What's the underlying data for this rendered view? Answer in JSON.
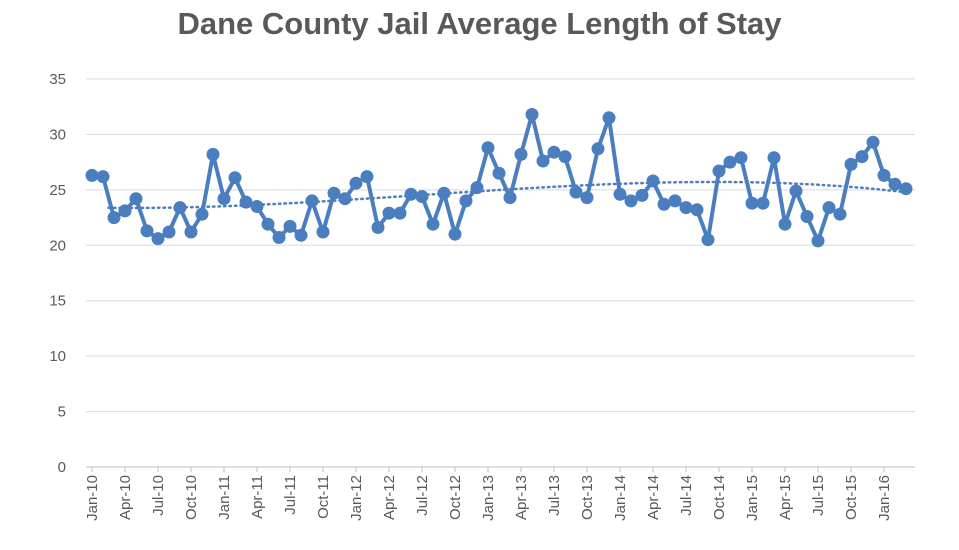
{
  "colors": {
    "series": "#4a7ebf",
    "grid": "#d9d9d9",
    "text": "#595959",
    "axis": "#bfbfbf"
  },
  "chart_data": {
    "type": "line",
    "title": "Dane County Jail Average Length of Stay",
    "xlabel": "",
    "ylabel": "",
    "ylim": [
      0,
      35
    ],
    "yticks": [
      0,
      5,
      10,
      15,
      20,
      25,
      30,
      35
    ],
    "grid": true,
    "legend": "none",
    "trendline": "polynomial (dotted)",
    "x_tick_labels": [
      "Jan-10",
      "Apr-10",
      "Jul-10",
      "Oct-10",
      "Jan-11",
      "Apr-11",
      "Jul-11",
      "Oct-11",
      "Jan-12",
      "Apr-12",
      "Jul-12",
      "Oct-12",
      "Jan-13",
      "Apr-13",
      "Jul-13",
      "Oct-13",
      "Jan-14",
      "Apr-14",
      "Jul-14",
      "Oct-14",
      "Jan-15",
      "Apr-15",
      "Jul-15",
      "Oct-15",
      "Jan-16"
    ],
    "x": [
      "Jan-10",
      "Feb-10",
      "Mar-10",
      "Apr-10",
      "May-10",
      "Jun-10",
      "Jul-10",
      "Aug-10",
      "Sep-10",
      "Oct-10",
      "Nov-10",
      "Dec-10",
      "Jan-11",
      "Feb-11",
      "Mar-11",
      "Apr-11",
      "May-11",
      "Jun-11",
      "Jul-11",
      "Aug-11",
      "Sep-11",
      "Oct-11",
      "Nov-11",
      "Dec-11",
      "Jan-12",
      "Feb-12",
      "Mar-12",
      "Apr-12",
      "May-12",
      "Jun-12",
      "Jul-12",
      "Aug-12",
      "Sep-12",
      "Oct-12",
      "Nov-12",
      "Dec-12",
      "Jan-13",
      "Feb-13",
      "Mar-13",
      "Apr-13",
      "May-13",
      "Jun-13",
      "Jul-13",
      "Aug-13",
      "Sep-13",
      "Oct-13",
      "Nov-13",
      "Dec-13",
      "Jan-14",
      "Feb-14",
      "Mar-14",
      "Apr-14",
      "May-14",
      "Jun-14",
      "Jul-14",
      "Aug-14",
      "Sep-14",
      "Oct-14",
      "Nov-14",
      "Dec-14",
      "Jan-15",
      "Feb-15",
      "Mar-15",
      "Apr-15",
      "May-15",
      "Jun-15",
      "Jul-15",
      "Aug-15",
      "Sep-15",
      "Oct-15",
      "Nov-15",
      "Dec-15",
      "Jan-16",
      "Feb-16",
      "Mar-16"
    ],
    "values": [
      26.3,
      26.2,
      22.5,
      23.1,
      24.2,
      21.3,
      20.6,
      21.2,
      23.4,
      21.2,
      22.8,
      28.2,
      24.2,
      26.1,
      23.9,
      23.5,
      21.9,
      20.7,
      21.7,
      20.9,
      24.0,
      21.2,
      24.7,
      24.2,
      25.6,
      26.2,
      21.6,
      22.9,
      22.9,
      24.6,
      24.4,
      21.9,
      24.7,
      21.0,
      24.0,
      25.2,
      28.8,
      26.5,
      24.3,
      28.2,
      31.8,
      27.6,
      28.4,
      28.0,
      24.8,
      24.3,
      28.7,
      31.5,
      24.6,
      24.0,
      24.5,
      25.8,
      23.7,
      24.0,
      23.4,
      23.2,
      20.5,
      26.7,
      27.5,
      27.9,
      23.8,
      23.8,
      27.9,
      21.9,
      24.9,
      22.6,
      20.4,
      23.4,
      22.8,
      27.3,
      28.0,
      29.3,
      26.3,
      25.5,
      25.1
    ],
    "trend": {
      "coefficients": [
        23.4,
        -0.019,
        0.00284,
        -3.15e-05
      ]
    }
  }
}
